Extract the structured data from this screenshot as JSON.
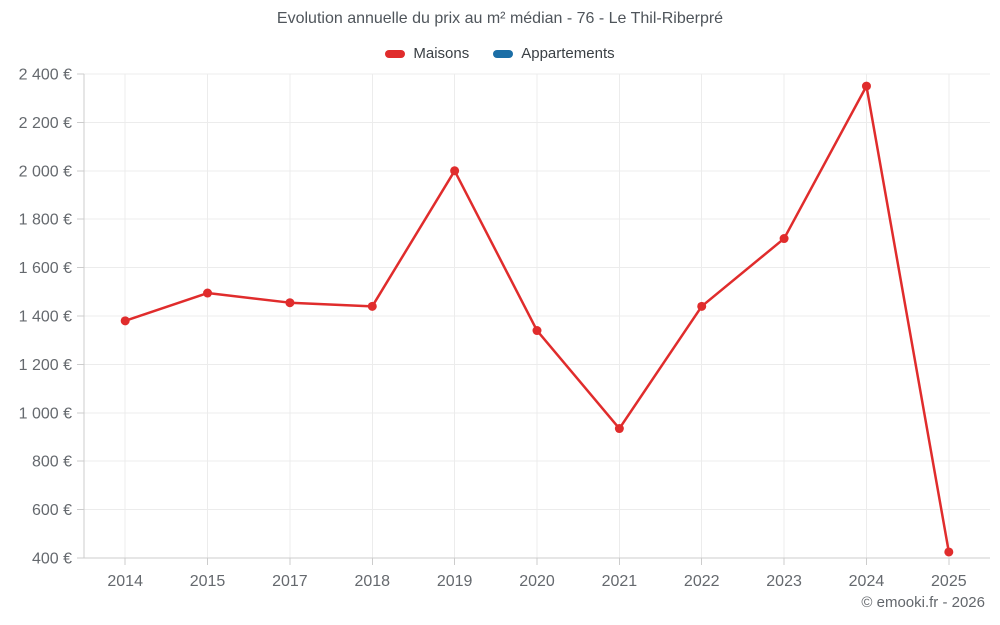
{
  "header": {
    "title": "Evolution annuelle du prix au m² médian - 76 - Le Thil-Riberpré"
  },
  "legend": [
    {
      "label": "Maisons",
      "color": "#e02c2c"
    },
    {
      "label": "Appartements",
      "color": "#1b6ea6"
    }
  ],
  "chart_data": {
    "type": "line",
    "title": "Evolution annuelle du prix au m² médian - 76 - Le Thil-Riberpré",
    "categories": [
      "2014",
      "2015",
      "2017",
      "2018",
      "2019",
      "2020",
      "2021",
      "2022",
      "2023",
      "2024",
      "2025"
    ],
    "series": [
      {
        "name": "Maisons",
        "color": "#e02c2c",
        "values": [
          1380,
          1495,
          1455,
          1440,
          2000,
          1340,
          935,
          1440,
          1720,
          2350,
          425
        ]
      },
      {
        "name": "Appartements",
        "color": "#1b6ea6",
        "values": []
      }
    ],
    "ylim": [
      400,
      2400
    ],
    "ytick_step": 200,
    "unit": "€",
    "grid": true,
    "legend_position": "top",
    "xlabel": "",
    "ylabel": ""
  },
  "colors": {
    "grid": "#ececec",
    "axis": "#cccccc",
    "tick_text": "#65696e"
  },
  "footer": {
    "credit": "© emooki.fr - 2026"
  }
}
